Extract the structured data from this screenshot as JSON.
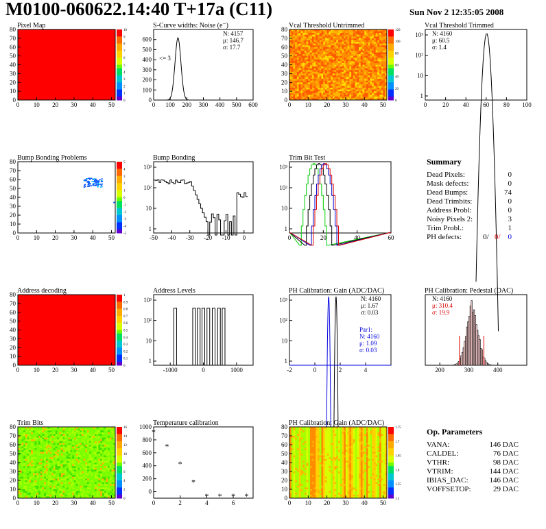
{
  "header": {
    "title": "M0100-060622.14:40 T+17a (C11)",
    "date": "Sun Nov  2 12:35:05 2008"
  },
  "colors": {
    "red": "#ff0000",
    "blue": "#0000cc",
    "green": "#00cc00",
    "stats_red": "#dd0000",
    "stats_blue": "#0000dd"
  },
  "chart_data": [
    {
      "id": "pixel_map",
      "type": "heatmap",
      "title": "Pixel Map",
      "xlim": [
        0,
        52
      ],
      "ylim": [
        0,
        80
      ],
      "xticks": [
        0,
        10,
        20,
        30,
        40,
        50
      ],
      "yticks": [
        0,
        10,
        20,
        30,
        40,
        50,
        60,
        70,
        80
      ],
      "zlim": [
        0,
        10
      ],
      "zticks": [
        "0",
        "1",
        "2",
        "3",
        "4",
        "5",
        "6",
        "7",
        "8",
        "9",
        "10"
      ],
      "fill": "uniform"
    },
    {
      "id": "noise",
      "type": "bar",
      "title": "S-Curve widths: Noise (e⁻)",
      "xlim": [
        0,
        600
      ],
      "xticks": [
        0,
        100,
        200,
        300,
        400,
        500,
        600
      ],
      "ylim": [
        0,
        700
      ],
      "yticks": [
        0,
        100,
        200,
        300,
        400,
        500,
        600
      ],
      "annotation": "<= 3",
      "stats": {
        "N": "N: 4157",
        "mu": "μ: 146.7",
        "sigma": "σ: 17.7"
      },
      "peak": [
        146.7,
        620
      ],
      "width": 17.7
    },
    {
      "id": "vcal_untrimmed",
      "type": "heatmap",
      "title": "Vcal Threshold Untrimmed",
      "xlim": [
        0,
        52
      ],
      "ylim": [
        0,
        80
      ],
      "xticks": [
        0,
        10,
        20,
        30,
        40,
        50
      ],
      "yticks": [
        0,
        10,
        20,
        30,
        40,
        50,
        60,
        70,
        80
      ],
      "zticks": [
        "0",
        "20",
        "40",
        "60",
        "80",
        "100",
        "120"
      ],
      "fill": "noise-orange"
    },
    {
      "id": "vcal_trimmed",
      "type": "bar",
      "title": "Vcal Threshold Trimmed",
      "log": true,
      "xlim": [
        0,
        100
      ],
      "xticks": [
        0,
        20,
        40,
        60,
        80,
        100
      ],
      "yticks": [
        "1",
        "10",
        "10²",
        "10³"
      ],
      "stats": {
        "N": "N: 4160",
        "mu": "μ: 60.5",
        "sigma": "σ: 1.4"
      },
      "peak": [
        60.5,
        1200
      ],
      "width": 1.4
    },
    {
      "id": "bump_problems",
      "type": "heatmap",
      "title": "Bump Bonding Problems",
      "xlim": [
        0,
        52
      ],
      "ylim": [
        0,
        80
      ],
      "xticks": [
        0,
        10,
        20,
        30,
        40,
        50
      ],
      "yticks": [
        0,
        10,
        20,
        30,
        40,
        50,
        60,
        70,
        80
      ],
      "zticks": [
        "-5",
        "-4",
        "-3",
        "-2",
        "-1",
        "0",
        "1",
        "2",
        "3",
        "4",
        "5"
      ],
      "fill": "sparse-cluster",
      "cluster": [
        40,
        57
      ]
    },
    {
      "id": "bump_bonding",
      "type": "bar",
      "title": "Bump Bonding",
      "log": true,
      "xlim": [
        -50,
        5
      ],
      "xticks": [
        -50,
        -40,
        -30,
        -20,
        -10,
        0
      ],
      "yticks": [
        "1",
        "10",
        "10²",
        "10³"
      ]
    },
    {
      "id": "trim_bit",
      "type": "line",
      "title": "Trim Bit Test",
      "log": true,
      "xlim": [
        0,
        60
      ],
      "xticks": [
        0,
        20,
        40,
        60
      ],
      "yticks": [
        "1",
        "10",
        "10²",
        "10³"
      ]
    },
    {
      "id": "address_decoding",
      "type": "heatmap",
      "title": "Address decoding",
      "xlim": [
        0,
        52
      ],
      "ylim": [
        0,
        80
      ],
      "xticks": [
        0,
        10,
        20,
        30,
        40,
        50
      ],
      "yticks": [
        0,
        10,
        20,
        30,
        40,
        50,
        60,
        70,
        80
      ],
      "zticks": [
        "0",
        "0.1",
        "0.2",
        "0.3",
        "0.4",
        "0.5",
        "0.6",
        "0.7",
        "0.8",
        "0.9",
        "1"
      ],
      "fill": "uniform"
    },
    {
      "id": "address_levels",
      "type": "bar",
      "title": "Address Levels",
      "log": true,
      "xlim": [
        -1500,
        1500
      ],
      "xticks": [
        -1000,
        0,
        1000
      ],
      "yticks": [
        "1",
        "10",
        "10²",
        "10³"
      ],
      "peaks": [
        -850,
        -280,
        -140,
        0,
        150,
        310,
        470,
        610
      ]
    },
    {
      "id": "ph_gain",
      "type": "bar",
      "title": "PH Calibration: Gain (ADC/DAC)",
      "log": true,
      "xlim": [
        -2,
        6
      ],
      "xticks": [
        -2,
        0,
        2,
        4
      ],
      "yticks": [
        "1",
        "10",
        "10²",
        "10³"
      ],
      "stats": {
        "N": "N: 4160",
        "mu": "μ: 1.67",
        "sigma": "σ: 0.03"
      },
      "fit": {
        "label": "Par1:",
        "N": "N: 4160",
        "mu": "μ: 1.09",
        "sigma": "σ: 0.03"
      }
    },
    {
      "id": "ph_pedestal",
      "type": "bar",
      "title": "PH Calibration: Pedestal (DAC)",
      "xlim": [
        150,
        500
      ],
      "xticks": [
        200,
        300,
        400
      ],
      "stats": {
        "N": "N: 4160",
        "mu": "μ: 310.4",
        "sigma": "σ: 19.9"
      }
    },
    {
      "id": "trim_bits",
      "type": "heatmap",
      "title": "Trim Bits",
      "xlim": [
        0,
        52
      ],
      "ylim": [
        0,
        80
      ],
      "xticks": [
        0,
        10,
        20,
        30,
        40,
        50
      ],
      "yticks": [
        0,
        10,
        20,
        30,
        40,
        50,
        60,
        70,
        80
      ],
      "zticks": [
        "0",
        "2",
        "4",
        "6",
        "8",
        "10",
        "12",
        "14",
        "16"
      ],
      "fill": "noise-green"
    },
    {
      "id": "temperature",
      "type": "scatter",
      "title": "Temperature calibration",
      "xlim": [
        0,
        7.5
      ],
      "ylim": [
        -100,
        1000
      ],
      "xticks": [
        0,
        2,
        4,
        6
      ],
      "yticks": [
        0,
        200,
        400,
        600,
        800,
        1000
      ],
      "x": [
        0,
        1,
        2,
        3,
        4,
        5,
        6,
        7
      ],
      "y": [
        920,
        700,
        430,
        150,
        -70,
        -70,
        -70,
        -70
      ]
    },
    {
      "id": "ph_gain_map",
      "type": "heatmap",
      "title": "PH Calibration: Gain (ADC/DAC)",
      "xlim": [
        0,
        52
      ],
      "ylim": [
        0,
        80
      ],
      "xticks": [
        0,
        10,
        20,
        30,
        40,
        50
      ],
      "yticks": [
        0,
        10,
        20,
        30,
        40,
        50,
        60,
        70,
        80
      ],
      "zticks": [
        "1.5",
        "1.55",
        "1.6",
        "1.65",
        "1.7",
        "1.75"
      ],
      "fill": "stripes-yellow"
    }
  ],
  "summary": {
    "title": "Summary",
    "rows": [
      {
        "label": "Dead Pixels:",
        "value": "0"
      },
      {
        "label": "Mask defects:",
        "value": "0"
      },
      {
        "label": "Dead Bumps:",
        "value": "74"
      },
      {
        "label": "Dead Trimbits:",
        "value": "0"
      },
      {
        "label": "Address Probl:",
        "value": "0"
      },
      {
        "label": "Noisy Pixels 2:",
        "value": "3"
      },
      {
        "label": "Trim Probl.:",
        "value": "1"
      }
    ],
    "ph": {
      "label": "PH defects:",
      "v1": "0/",
      "v2": "0/",
      "v3": "0"
    }
  },
  "op_params": {
    "title": "Op. Parameters",
    "rows": [
      {
        "label": "VANA:",
        "value": "146 DAC"
      },
      {
        "label": "CALDEL:",
        "value": "76 DAC"
      },
      {
        "label": "VTHR:",
        "value": "98 DAC"
      },
      {
        "label": "VTRIM:",
        "value": "144 DAC"
      },
      {
        "label": "IBIAS_DAC:",
        "value": "146 DAC"
      },
      {
        "label": "VOFFSETOP:",
        "value": "29 DAC"
      }
    ]
  }
}
